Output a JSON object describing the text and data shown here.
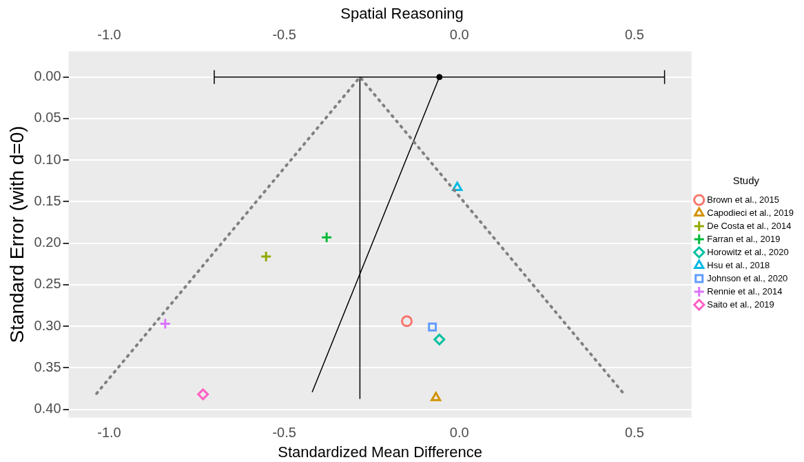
{
  "chart_data": {
    "type": "scatter",
    "title": "Spatial Reasoning",
    "xlabel": "Standardized Mean Difference",
    "ylabel": "Standard Error (with d=0)",
    "x2label": null,
    "legend_title": "Study",
    "legend": "right",
    "grid": "y",
    "xlim": [
      -1.116,
      0.663
    ],
    "xticks": [
      {
        "value": -1,
        "label": "-1.0"
      },
      {
        "value": -0.5,
        "label": "-0.5"
      },
      {
        "value": 0,
        "label": "0.0"
      },
      {
        "value": 0.5,
        "label": "0.5"
      }
    ],
    "x2lim": [
      -1.116,
      0.663
    ],
    "x2ticks": [
      {
        "value": -1,
        "label": "-1.0"
      },
      {
        "value": -0.5,
        "label": "-0.5"
      },
      {
        "value": 0,
        "label": "0.0"
      },
      {
        "value": 0.5,
        "label": "0.5"
      }
    ],
    "ylim": [
      0.41,
      -0.031
    ],
    "yticks": [
      {
        "value": 0,
        "label": "0.00"
      },
      {
        "value": 0.05,
        "label": "0.05"
      },
      {
        "value": 0.1,
        "label": "0.10"
      },
      {
        "value": 0.15,
        "label": "0.15"
      },
      {
        "value": 0.2,
        "label": "0.20"
      },
      {
        "value": 0.25,
        "label": "0.25"
      },
      {
        "value": 0.3,
        "label": "0.30"
      },
      {
        "value": 0.35,
        "label": "0.35"
      },
      {
        "value": 0.4,
        "label": "0.40"
      }
    ],
    "series": [
      {
        "type": "line",
        "color": "#808080",
        "line_style": "dotted",
        "marker": "none",
        "x": [
          -1.036,
          -0.284,
          0.469
        ],
        "values": [
          0.381,
          0,
          0.381
        ]
      },
      {
        "type": "line",
        "color": "#000000",
        "line_style": "solid",
        "marker": "none",
        "x": [
          -0.284,
          -0.284
        ],
        "values": [
          0,
          0.387
        ]
      },
      {
        "type": "line",
        "color": "#000000",
        "line_style": "solid",
        "marker": "none",
        "x": [
          -0.057,
          -0.42
        ],
        "values": [
          0,
          0.379
        ]
      },
      {
        "type": "scatter",
        "color": "#000000",
        "marker": "circle",
        "x": [
          -0.057
        ],
        "values": [
          0
        ],
        "xerrors": [
          [
            -0.7,
            0.586
          ]
        ]
      },
      {
        "type": "scatter",
        "name": "Brown et al., 2015",
        "color": "#F8766D",
        "marker": "circle",
        "x": [
          -0.15
        ],
        "values": [
          0.294
        ]
      },
      {
        "type": "scatter",
        "name": "Capodieci et al., 2019",
        "color": "#D39200",
        "marker": "triangle",
        "x": [
          -0.067
        ],
        "values": [
          0.386
        ]
      },
      {
        "type": "scatter",
        "name": "De Costa et al., 2014",
        "color": "#93AA00",
        "marker": "cross",
        "x": [
          -0.552
        ],
        "values": [
          0.216
        ]
      },
      {
        "type": "scatter",
        "name": "Farran et al., 2019",
        "color": "#00BA38",
        "marker": "cross",
        "x": [
          -0.379
        ],
        "values": [
          0.193
        ]
      },
      {
        "type": "scatter",
        "name": "Horowitz et al., 2020",
        "color": "#00C19F",
        "marker": "diamond",
        "x": [
          -0.057
        ],
        "values": [
          0.316
        ]
      },
      {
        "type": "scatter",
        "name": "Hsu et al., 2018",
        "color": "#00B9E3",
        "marker": "triangle",
        "x": [
          -0.006
        ],
        "values": [
          0.133
        ]
      },
      {
        "type": "scatter",
        "name": "Johnson et al., 2020",
        "color": "#619CFF",
        "marker": "square",
        "x": [
          -0.077
        ],
        "values": [
          0.301
        ]
      },
      {
        "type": "scatter",
        "name": "Rennie et al., 2014",
        "color": "#DB72FB",
        "marker": "cross",
        "x": [
          -0.84
        ],
        "values": [
          0.297
        ]
      },
      {
        "type": "scatter",
        "name": "Saito et al., 2019",
        "color": "#FF61C3",
        "marker": "diamond",
        "x": [
          -0.732
        ],
        "values": [
          0.382
        ]
      }
    ]
  }
}
